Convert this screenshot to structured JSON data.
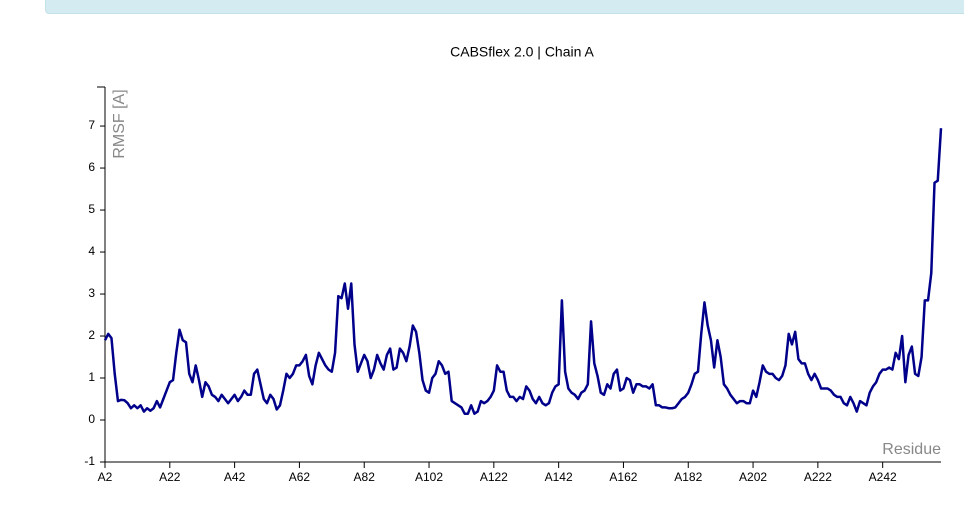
{
  "chart_data": {
    "type": "line",
    "title": "CABSflex 2.0 | Chain A",
    "x_label": "Residue",
    "y_label": "RMSF [A]",
    "x": [
      2,
      3,
      4,
      5,
      6,
      7,
      8,
      9,
      10,
      11,
      12,
      13,
      14,
      15,
      16,
      17,
      18,
      19,
      20,
      21,
      22,
      23,
      24,
      25,
      26,
      27,
      28,
      29,
      30,
      31,
      32,
      33,
      34,
      35,
      36,
      37,
      38,
      39,
      40,
      41,
      42,
      43,
      44,
      45,
      46,
      47,
      48,
      49,
      50,
      51,
      52,
      53,
      54,
      55,
      56,
      57,
      58,
      59,
      60,
      61,
      62,
      63,
      64,
      65,
      66,
      67,
      68,
      69,
      70,
      71,
      72,
      73,
      74,
      75,
      76,
      77,
      78,
      79,
      80,
      81,
      82,
      83,
      84,
      85,
      86,
      87,
      88,
      89,
      90,
      91,
      92,
      93,
      94,
      95,
      96,
      97,
      98,
      99,
      100,
      101,
      102,
      103,
      104,
      105,
      106,
      107,
      108,
      109,
      110,
      111,
      112,
      113,
      114,
      115,
      116,
      117,
      118,
      119,
      120,
      121,
      122,
      123,
      124,
      125,
      126,
      127,
      128,
      129,
      130,
      131,
      132,
      133,
      134,
      135,
      136,
      137,
      138,
      139,
      140,
      141,
      142,
      143,
      144,
      145,
      146,
      147,
      148,
      149,
      150,
      151,
      152,
      153,
      154,
      155,
      156,
      157,
      158,
      159,
      160,
      161,
      162,
      163,
      164,
      165,
      166,
      167,
      168,
      169,
      170,
      171,
      172,
      173,
      174,
      175,
      176,
      177,
      178,
      179,
      180,
      181,
      182,
      183,
      184,
      185,
      186,
      187,
      188,
      189,
      190,
      191,
      192,
      193,
      194,
      195,
      196,
      197,
      198,
      199,
      200,
      201,
      202,
      203,
      204,
      205,
      206,
      207,
      208,
      209,
      210,
      211,
      212,
      213,
      214,
      215,
      216,
      217,
      218,
      219,
      220,
      221,
      222,
      223,
      224,
      225,
      226,
      227,
      228,
      229,
      230,
      231,
      232,
      233,
      234,
      235,
      236,
      237,
      238,
      239,
      240,
      241,
      242,
      243,
      244,
      245,
      246,
      247,
      248,
      249,
      250,
      251,
      252,
      253,
      254,
      255,
      256,
      257,
      258,
      259,
      260
    ],
    "series": [
      {
        "color": "#00008b",
        "values": [
          1.9,
          2.05,
          1.95,
          1.1,
          0.45,
          0.48,
          0.47,
          0.4,
          0.28,
          0.35,
          0.28,
          0.35,
          0.2,
          0.28,
          0.22,
          0.28,
          0.45,
          0.3,
          0.5,
          0.7,
          0.9,
          0.95,
          1.6,
          2.15,
          1.9,
          1.85,
          1.1,
          0.9,
          1.3,
          0.95,
          0.55,
          0.9,
          0.8,
          0.6,
          0.55,
          0.45,
          0.6,
          0.5,
          0.4,
          0.5,
          0.6,
          0.45,
          0.55,
          0.7,
          0.6,
          0.6,
          1.1,
          1.2,
          0.85,
          0.5,
          0.4,
          0.6,
          0.5,
          0.25,
          0.35,
          0.7,
          1.1,
          1.0,
          1.1,
          1.3,
          1.3,
          1.4,
          1.55,
          1.05,
          0.85,
          1.3,
          1.6,
          1.45,
          1.3,
          1.2,
          1.15,
          1.6,
          2.95,
          2.9,
          3.25,
          2.65,
          3.25,
          1.8,
          1.15,
          1.35,
          1.55,
          1.4,
          1.0,
          1.2,
          1.55,
          1.35,
          1.2,
          1.55,
          1.7,
          1.2,
          1.25,
          1.7,
          1.6,
          1.4,
          1.75,
          2.25,
          2.1,
          1.6,
          0.95,
          0.7,
          0.65,
          1.0,
          1.1,
          1.4,
          1.3,
          1.1,
          1.15,
          0.45,
          0.4,
          0.35,
          0.3,
          0.15,
          0.15,
          0.35,
          0.15,
          0.2,
          0.45,
          0.4,
          0.45,
          0.55,
          0.7,
          1.3,
          1.15,
          1.15,
          0.7,
          0.55,
          0.55,
          0.45,
          0.55,
          0.5,
          0.8,
          0.7,
          0.5,
          0.4,
          0.55,
          0.4,
          0.35,
          0.4,
          0.65,
          0.8,
          0.85,
          2.85,
          1.15,
          0.75,
          0.65,
          0.6,
          0.5,
          0.65,
          0.7,
          0.85,
          2.35,
          1.35,
          1.05,
          0.65,
          0.6,
          0.85,
          0.75,
          1.1,
          1.2,
          0.7,
          0.75,
          1.0,
          0.95,
          0.65,
          0.85,
          0.85,
          0.8,
          0.8,
          0.75,
          0.85,
          0.35,
          0.35,
          0.3,
          0.3,
          0.28,
          0.28,
          0.3,
          0.4,
          0.5,
          0.55,
          0.65,
          0.85,
          1.1,
          1.15,
          2.05,
          2.8,
          2.25,
          1.9,
          1.25,
          1.9,
          1.5,
          0.85,
          0.75,
          0.6,
          0.5,
          0.4,
          0.45,
          0.45,
          0.4,
          0.4,
          0.7,
          0.55,
          0.9,
          1.3,
          1.15,
          1.1,
          1.1,
          1.0,
          0.95,
          1.05,
          1.3,
          2.05,
          1.8,
          2.1,
          1.45,
          1.35,
          1.35,
          1.1,
          0.95,
          1.1,
          0.95,
          0.75,
          0.75,
          0.75,
          0.7,
          0.6,
          0.55,
          0.55,
          0.4,
          0.35,
          0.55,
          0.4,
          0.2,
          0.45,
          0.4,
          0.35,
          0.65,
          0.8,
          0.9,
          1.1,
          1.2,
          1.2,
          1.25,
          1.2,
          1.6,
          1.45,
          2.0,
          0.9,
          1.55,
          1.75,
          1.1,
          1.05,
          1.5,
          2.85,
          2.85,
          3.5,
          5.65,
          5.7,
          6.95
        ]
      }
    ],
    "xlim": [
      2,
      260
    ],
    "xticks": [
      {
        "value": 2,
        "label": "A2"
      },
      {
        "value": 22,
        "label": "A22"
      },
      {
        "value": 42,
        "label": "A42"
      },
      {
        "value": 62,
        "label": "A62"
      },
      {
        "value": 82,
        "label": "A82"
      },
      {
        "value": 102,
        "label": "A102"
      },
      {
        "value": 122,
        "label": "A122"
      },
      {
        "value": 142,
        "label": "A142"
      },
      {
        "value": 162,
        "label": "A162"
      },
      {
        "value": 182,
        "label": "A182"
      },
      {
        "value": 202,
        "label": "A202"
      },
      {
        "value": 222,
        "label": "A222"
      },
      {
        "value": 242,
        "label": "A242"
      }
    ],
    "ylim": [
      -1,
      7.93
    ],
    "yticks": [
      -1,
      0,
      1,
      2,
      3,
      4,
      5,
      6,
      7
    ]
  }
}
